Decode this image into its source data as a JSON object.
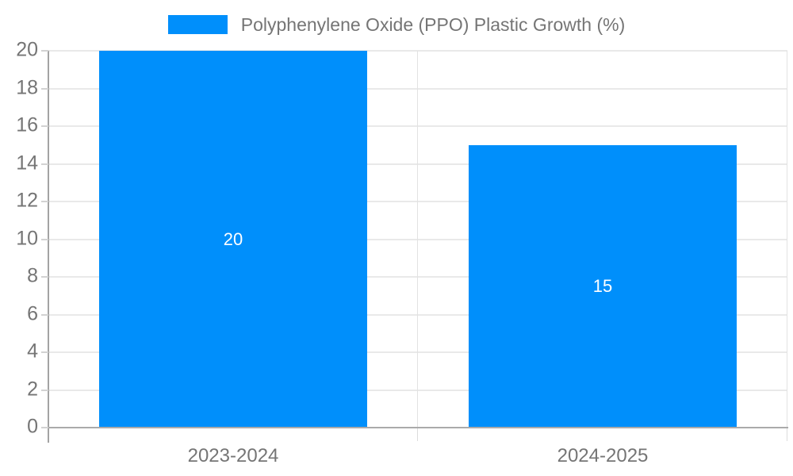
{
  "legend": {
    "label": "Polyphenylene Oxide (PPO) Plastic Growth (%)"
  },
  "colors": {
    "bar": "#008FFB",
    "grid": "#e9e9e9",
    "axis_text": "#757575",
    "data_label": "#ffffff"
  },
  "chart_data": {
    "type": "bar",
    "title": "Polyphenylene Oxide (PPO) Plastic Growth (%)",
    "series": [
      {
        "name": "Polyphenylene Oxide (PPO) Plastic Growth (%)",
        "values": [
          20,
          15
        ]
      }
    ],
    "categories": [
      "2023-2024",
      "2024-2025"
    ],
    "data_labels": [
      "20",
      "15"
    ],
    "xlabel": "",
    "ylabel": "",
    "ylim": [
      0,
      20
    ],
    "yticks": [
      0,
      2,
      4,
      6,
      8,
      10,
      12,
      14,
      16,
      18,
      20
    ],
    "grid": true,
    "legend_position": "top"
  }
}
